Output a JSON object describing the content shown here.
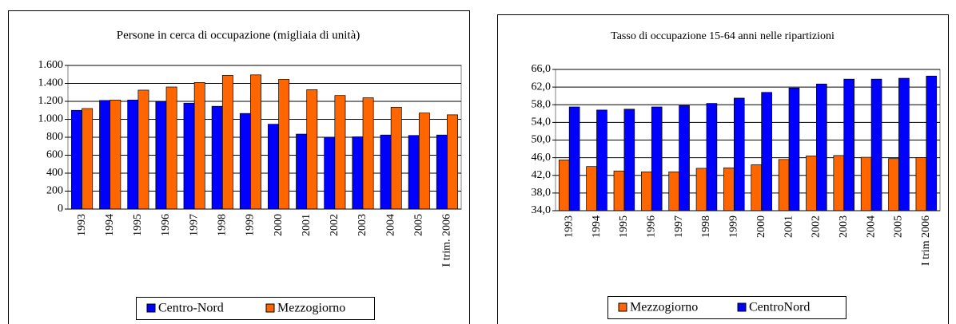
{
  "chart_data": [
    {
      "type": "bar",
      "title": "Persone in cerca di occupazione (migliaia di unità)",
      "categories": [
        "1993",
        "1994",
        "1995",
        "1996",
        "1997",
        "1998",
        "1999",
        "2000",
        "2001",
        "2002",
        "2003",
        "2004",
        "2005",
        "I trim. 2006"
      ],
      "series": [
        {
          "name": "Centro-Nord",
          "color": "#0000ff",
          "values": [
            1100,
            1210,
            1215,
            1195,
            1180,
            1145,
            1065,
            945,
            835,
            800,
            805,
            825,
            820,
            825
          ]
        },
        {
          "name": "Mezzogiorno",
          "color": "#ff6600",
          "values": [
            1120,
            1215,
            1325,
            1360,
            1410,
            1490,
            1495,
            1445,
            1330,
            1265,
            1240,
            1135,
            1070,
            1050
          ]
        }
      ],
      "ylim": [
        0,
        1600
      ],
      "yticks": [
        0,
        200,
        400,
        600,
        800,
        {
          "value": 1000,
          "label": "1.000"
        },
        {
          "value": 1200,
          "label": "1.200"
        },
        {
          "value": 1400,
          "label": "1.400"
        },
        {
          "value": 1600,
          "label": "1.600"
        }
      ],
      "grid": true,
      "legend": "bottom"
    },
    {
      "type": "bar",
      "title": "Tasso di occupazione 15-64 anni nelle ripartizioni",
      "categories": [
        "1993",
        "1994",
        "1995",
        "1996",
        "1997",
        "1998",
        "1999",
        "2000",
        "2001",
        "2002",
        "2003",
        "2004",
        "2005",
        "I trim 2006"
      ],
      "series": [
        {
          "name": "Mezzogiorno",
          "color": "#ff6600",
          "values": [
            45.5,
            44.0,
            43.0,
            42.8,
            42.8,
            43.6,
            43.7,
            44.4,
            45.6,
            46.4,
            46.5,
            46.1,
            45.8,
            46.0
          ]
        },
        {
          "name": "CentroNord",
          "color": "#0000ff",
          "values": [
            57.5,
            56.8,
            57.0,
            57.5,
            57.8,
            58.3,
            59.5,
            60.8,
            61.8,
            62.7,
            63.8,
            63.8,
            64.0,
            64.5
          ]
        }
      ],
      "ylim": [
        34,
        66
      ],
      "yticks": [
        {
          "value": 34,
          "label": "34,0"
        },
        {
          "value": 38,
          "label": "38,0"
        },
        {
          "value": 42,
          "label": "42,0"
        },
        {
          "value": 46,
          "label": "46,0"
        },
        {
          "value": 50,
          "label": "50,0"
        },
        {
          "value": 54,
          "label": "54,0"
        },
        {
          "value": 58,
          "label": "58,0"
        },
        {
          "value": 62,
          "label": "62,0"
        },
        {
          "value": 66,
          "label": "66,0"
        }
      ],
      "grid": true,
      "legend": "bottom"
    }
  ]
}
